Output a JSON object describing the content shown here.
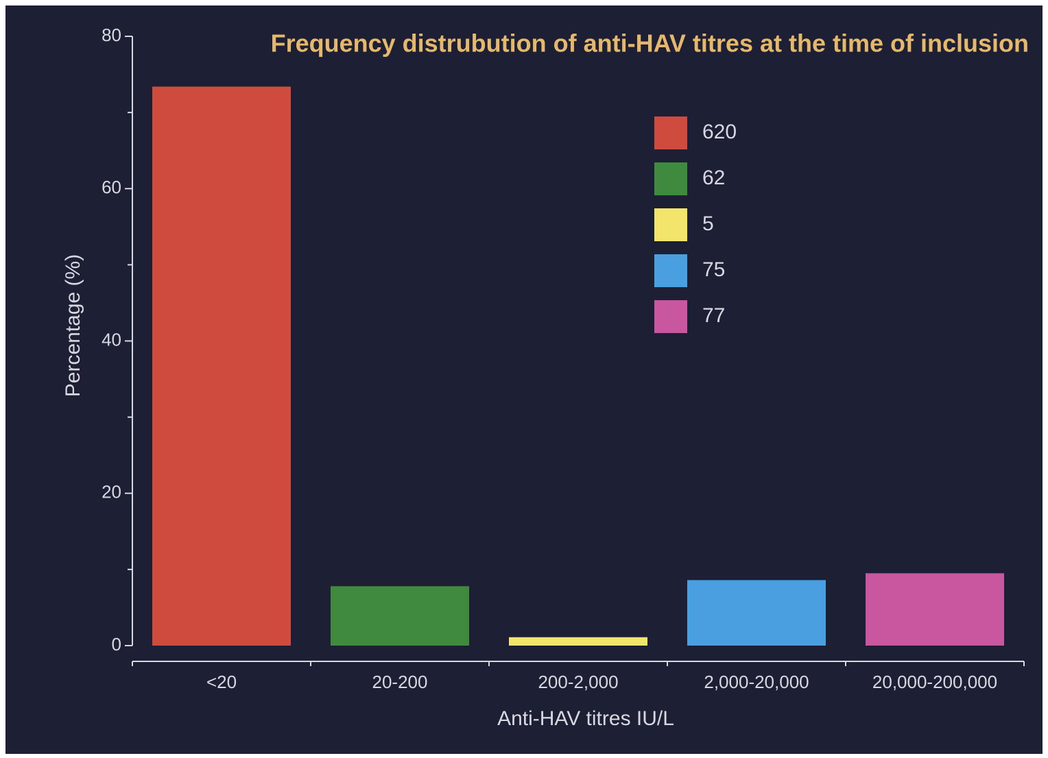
{
  "chart_data": {
    "type": "bar",
    "title": "Frequency distrubution of anti-HAV titres at the time of inclusion",
    "x_label": "Anti-HAV titres IU/L",
    "y_label": "Percentage (%)",
    "categories": [
      "<20",
      "20-200",
      "200-2,000",
      "2,000-20,000",
      "20,000-200,000"
    ],
    "values": [
      73.4,
      7.8,
      1.1,
      8.6,
      9.5
    ],
    "colors": [
      "#cf4b3d",
      "#3f8a3e",
      "#f3e46c",
      "#4a9fe0",
      "#c8579f"
    ],
    "legend": [
      "620",
      "62",
      "5",
      "75",
      "77"
    ],
    "ylim": [
      0,
      80
    ],
    "yticks": [
      0,
      20,
      40,
      60,
      80
    ],
    "minor_yticks": [
      10,
      30,
      50,
      70
    ],
    "grid": false
  }
}
